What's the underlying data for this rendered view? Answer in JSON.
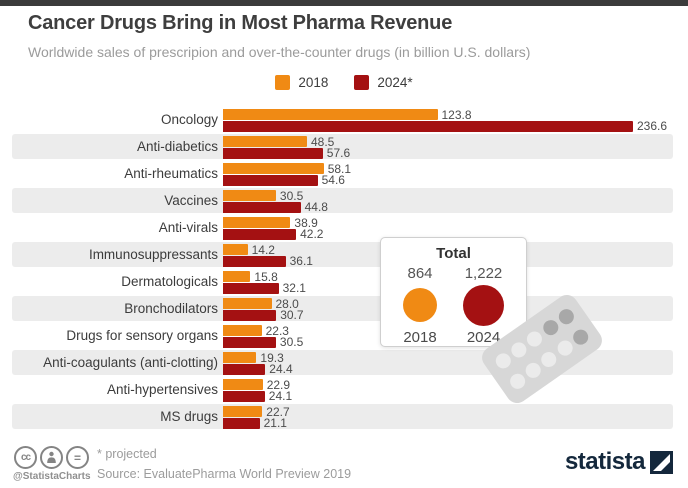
{
  "header": {
    "title": "Cancer Drugs Bring in Most Pharma Revenue",
    "subtitle": "Worldwide sales of prescripion and over-the-counter drugs (in billion U.S. dollars)"
  },
  "legend": {
    "items": [
      {
        "label": "2018",
        "color": "#F08A14"
      },
      {
        "label": "2024*",
        "color": "#A41112"
      }
    ]
  },
  "chart_data": {
    "type": "bar",
    "orientation": "horizontal",
    "title": "Cancer Drugs Bring in Most Pharma Revenue",
    "subtitle": "Worldwide sales of prescripion and over-the-counter drugs (in billion U.S. dollars)",
    "xlim": [
      0,
      236.6
    ],
    "grid": false,
    "legend_position": "top-center",
    "categories": [
      "Oncology",
      "Anti-diabetics",
      "Anti-rheumatics",
      "Vaccines",
      "Anti-virals",
      "Immunosuppressants",
      "Dermatologicals",
      "Bronchodilators",
      "Drugs for sensory organs",
      "Anti-coagulants (anti-clotting)",
      "Anti-hypertensives",
      "MS drugs"
    ],
    "series": [
      {
        "name": "2018",
        "color": "#F08A14",
        "values": [
          123.8,
          48.5,
          58.1,
          30.5,
          38.9,
          14.2,
          15.8,
          28.0,
          22.3,
          19.3,
          22.9,
          22.7
        ],
        "labels": [
          "123.8",
          "48.5",
          "58.1",
          "30.5",
          "38.9",
          "14.2",
          "15.8",
          "28.0",
          "22.3",
          "19.3",
          "22.9",
          "22.7"
        ]
      },
      {
        "name": "2024*",
        "color": "#A41112",
        "values": [
          236.6,
          57.6,
          54.6,
          44.8,
          42.2,
          36.1,
          32.1,
          30.7,
          30.5,
          24.4,
          24.1,
          21.1
        ],
        "labels": [
          "236.6",
          "57.6",
          "54.6",
          "44.8",
          "42.2",
          "36.1",
          "32.1",
          "30.7",
          "30.5",
          "24.4",
          "24.1",
          "21.1"
        ]
      }
    ],
    "total": {
      "title": "Total",
      "items": [
        {
          "value": "864",
          "year": "2018",
          "color": "#F08A14"
        },
        {
          "value": "1,222",
          "year": "2024",
          "color": "#A41112"
        }
      ]
    }
  },
  "footer": {
    "license_icons": [
      "cc",
      "attribution",
      "equals"
    ],
    "handle": "@StatistaCharts",
    "note": "* projected",
    "source": "Source: EvaluatePharma World Preview 2019",
    "brand": "statista"
  },
  "colors": {
    "orange_2018": "#F08A14",
    "red_2024": "#A41112",
    "row_band": "#ECECEC",
    "brand_navy": "#14283C",
    "topbar": "#3B3B3B"
  }
}
